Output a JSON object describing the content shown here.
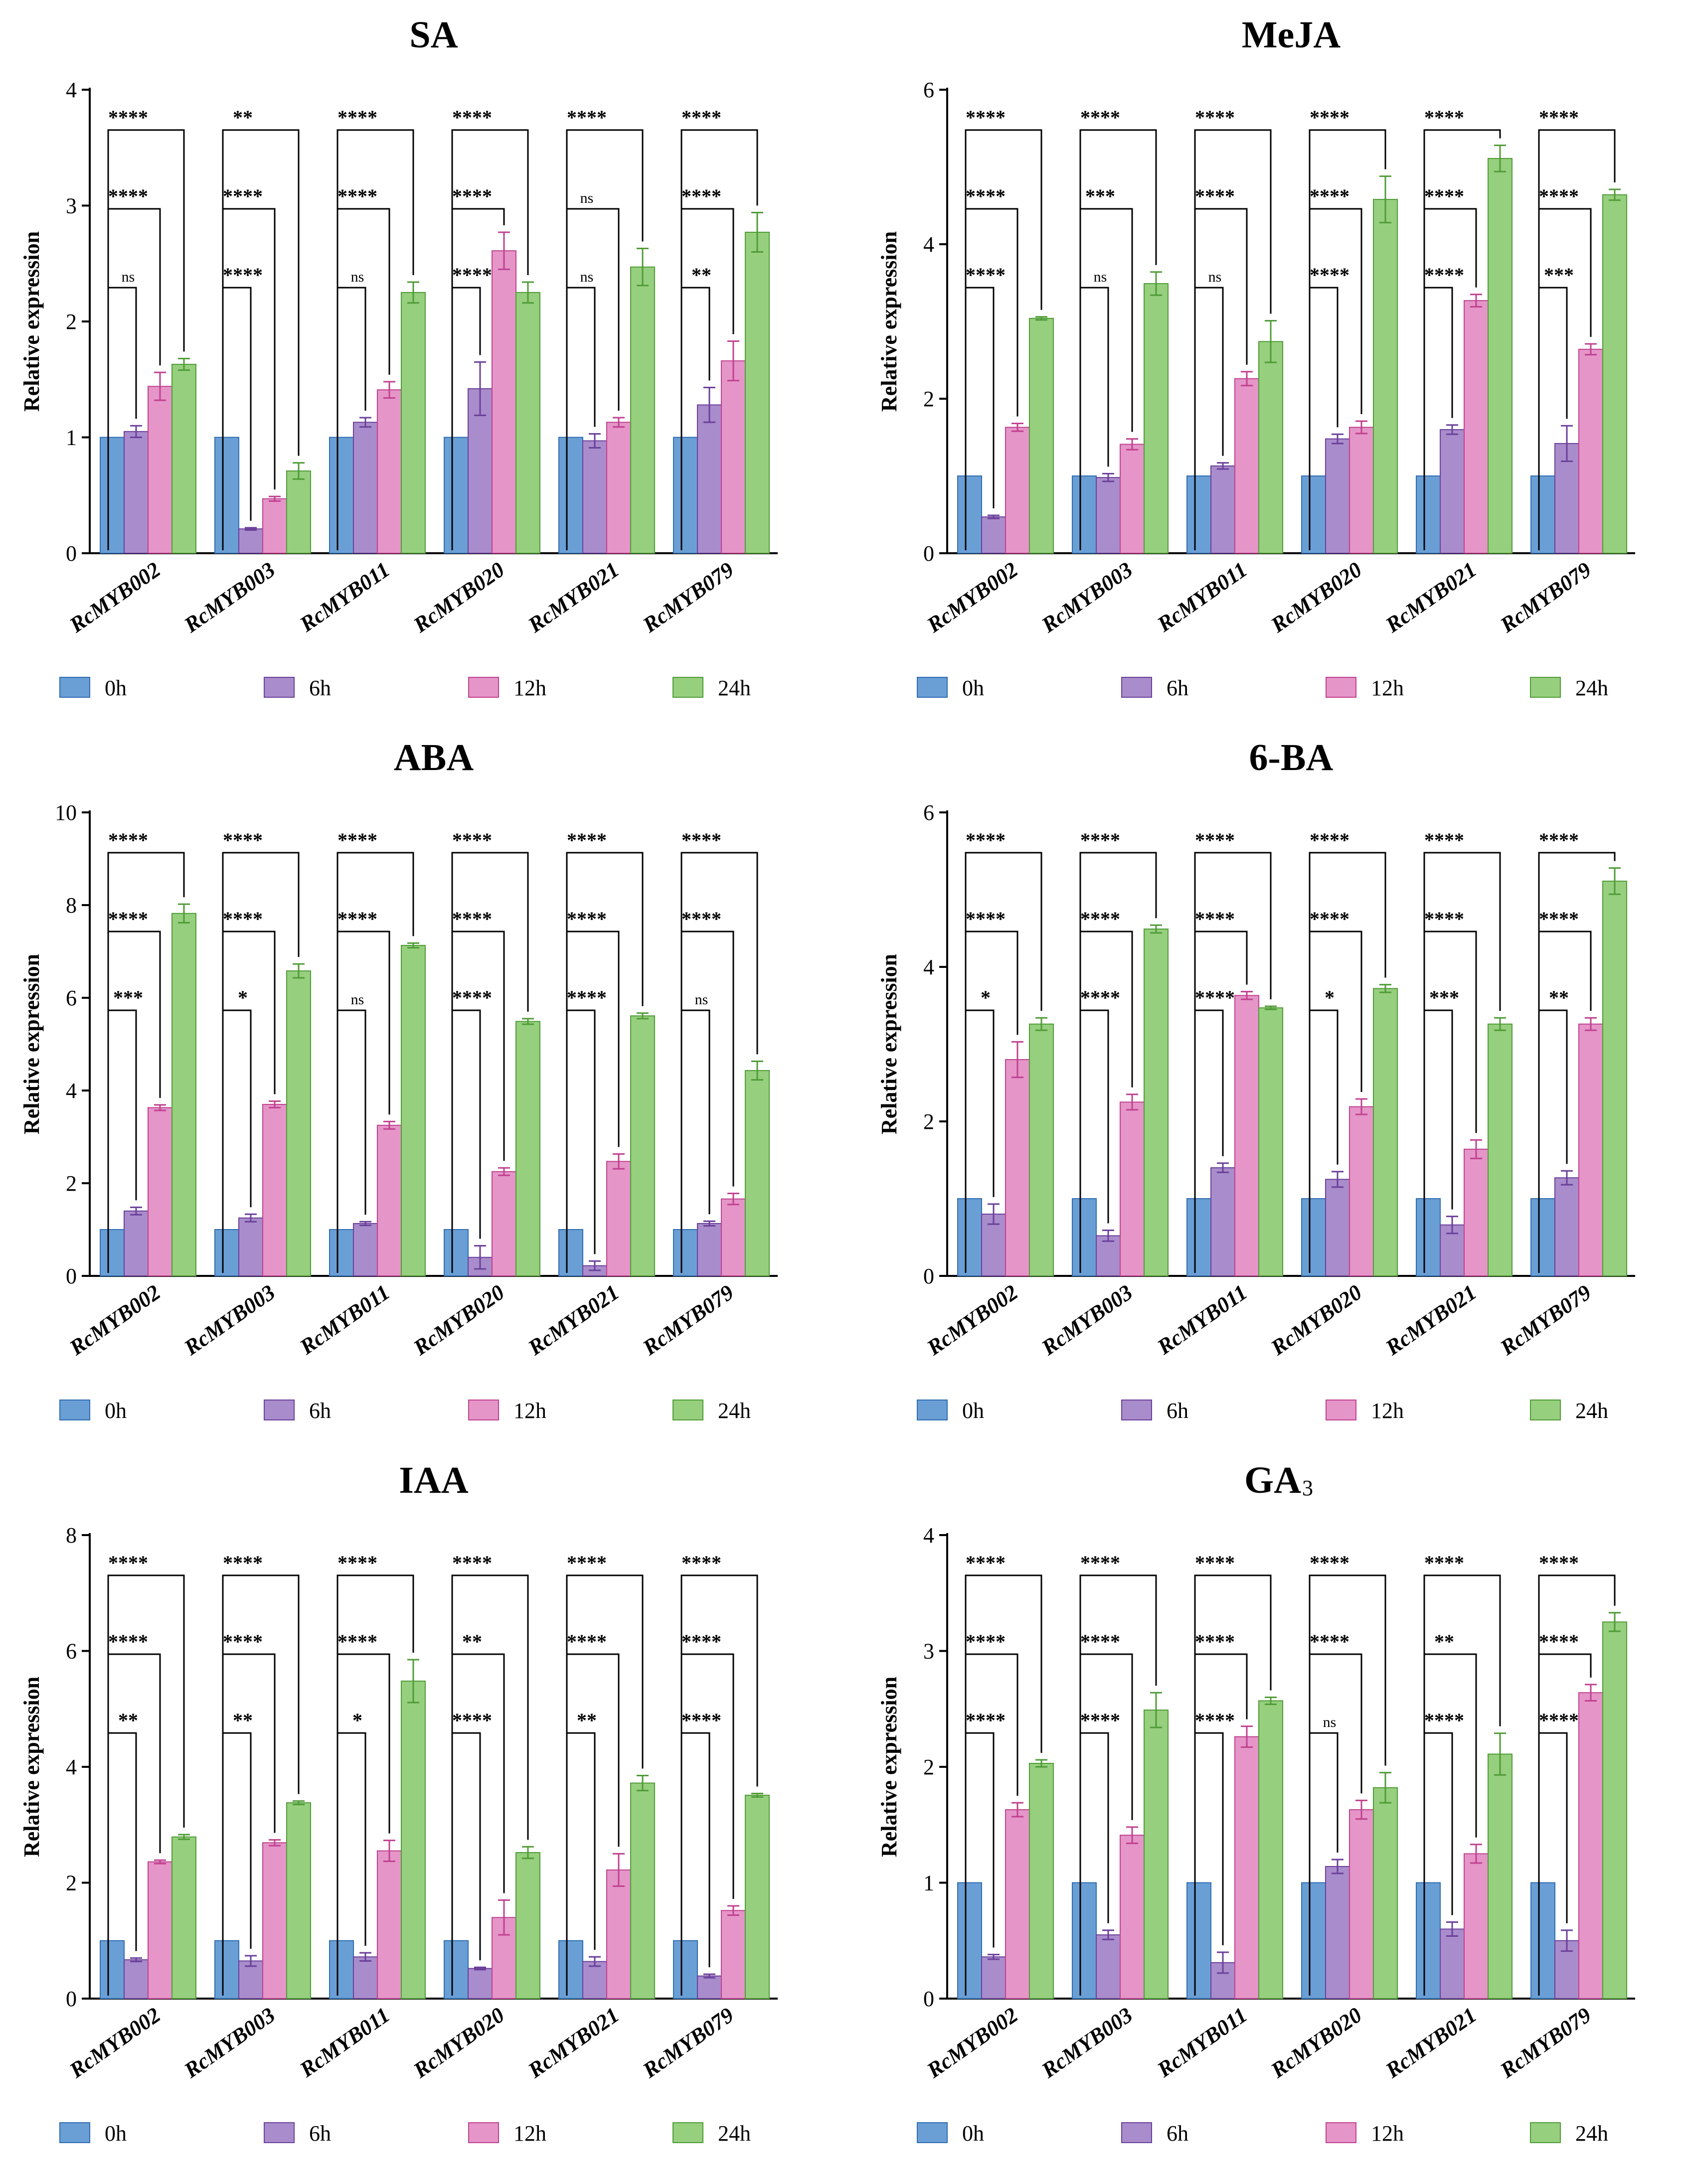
{
  "figure": {
    "legend": [
      {
        "label": "0h",
        "fill": "#6A9FD6",
        "stroke": "#2F6DB0"
      },
      {
        "label": "6h",
        "fill": "#A98CCB",
        "stroke": "#6A3F9A"
      },
      {
        "label": "12h",
        "fill": "#E595C8",
        "stroke": "#C0408F"
      },
      {
        "label": "24h",
        "fill": "#96CF7E",
        "stroke": "#4F9B36"
      }
    ]
  },
  "chart_data": [
    {
      "type": "bar",
      "title": "SA",
      "title_sub": "",
      "ylabel": "Relative expression",
      "ylim": [
        0,
        4
      ],
      "yticks": [
        0,
        1,
        2,
        3,
        4
      ],
      "categories": [
        "RcMYB002",
        "RcMYB003",
        "RcMYB011",
        "RcMYB020",
        "RcMYB021",
        "RcMYB079"
      ],
      "series": [
        {
          "name": "0h",
          "values": [
            1,
            1,
            1,
            1,
            1,
            1
          ],
          "errors": [
            0,
            0,
            0,
            0,
            0,
            0
          ]
        },
        {
          "name": "6h",
          "values": [
            1.05,
            0.21,
            1.13,
            1.42,
            0.97,
            1.28
          ],
          "errors": [
            0.05,
            0.01,
            0.04,
            0.23,
            0.06,
            0.15
          ]
        },
        {
          "name": "12h",
          "values": [
            1.44,
            0.47,
            1.41,
            2.61,
            1.13,
            1.66
          ],
          "errors": [
            0.12,
            0.02,
            0.07,
            0.16,
            0.04,
            0.17
          ]
        },
        {
          "name": "24h",
          "values": [
            1.63,
            0.71,
            2.25,
            2.25,
            2.47,
            2.77
          ],
          "errors": [
            0.05,
            0.07,
            0.09,
            0.09,
            0.16,
            0.17
          ]
        }
      ],
      "significance": [
        [
          "ns",
          "****",
          "****"
        ],
        [
          "****",
          "****",
          "**"
        ],
        [
          "ns",
          "****",
          "****"
        ],
        [
          "****",
          "****",
          "****"
        ],
        [
          "ns",
          "ns",
          "****"
        ],
        [
          "**",
          "****",
          "****"
        ]
      ]
    },
    {
      "type": "bar",
      "title": "MeJA",
      "title_sub": "",
      "ylabel": "Relative expression",
      "ylim": [
        0,
        6
      ],
      "yticks": [
        0,
        2,
        4,
        6
      ],
      "categories": [
        "RcMYB002",
        "RcMYB003",
        "RcMYB011",
        "RcMYB020",
        "RcMYB021",
        "RcMYB079"
      ],
      "series": [
        {
          "name": "0h",
          "values": [
            1,
            1,
            1,
            1,
            1,
            1
          ],
          "errors": [
            0,
            0,
            0,
            0,
            0,
            0
          ]
        },
        {
          "name": "6h",
          "values": [
            0.47,
            0.98,
            1.13,
            1.48,
            1.6,
            1.42
          ],
          "errors": [
            0.02,
            0.05,
            0.04,
            0.06,
            0.06,
            0.23
          ]
        },
        {
          "name": "12h",
          "values": [
            1.63,
            1.41,
            2.26,
            1.63,
            3.27,
            2.64
          ],
          "errors": [
            0.05,
            0.07,
            0.09,
            0.08,
            0.08,
            0.07
          ]
        },
        {
          "name": "24h",
          "values": [
            3.04,
            3.49,
            2.74,
            4.58,
            5.11,
            4.64
          ],
          "errors": [
            0.02,
            0.15,
            0.27,
            0.3,
            0.17,
            0.07
          ]
        }
      ],
      "significance": [
        [
          "****",
          "****",
          "****"
        ],
        [
          "ns",
          "***",
          "****"
        ],
        [
          "ns",
          "****",
          "****"
        ],
        [
          "****",
          "****",
          "****"
        ],
        [
          "****",
          "****",
          "****"
        ],
        [
          "***",
          "****",
          "****"
        ]
      ]
    },
    {
      "type": "bar",
      "title": "ABA",
      "title_sub": "",
      "ylabel": "Relative expression",
      "ylim": [
        0,
        10
      ],
      "yticks": [
        0,
        2,
        4,
        6,
        8,
        10
      ],
      "categories": [
        "RcMYB002",
        "RcMYB003",
        "RcMYB011",
        "RcMYB020",
        "RcMYB021",
        "RcMYB079"
      ],
      "series": [
        {
          "name": "0h",
          "values": [
            1,
            1,
            1,
            1,
            1,
            1
          ],
          "errors": [
            0,
            0,
            0,
            0,
            0,
            0
          ]
        },
        {
          "name": "6h",
          "values": [
            1.4,
            1.25,
            1.13,
            0.4,
            0.22,
            1.13
          ],
          "errors": [
            0.08,
            0.08,
            0.04,
            0.25,
            0.1,
            0.05
          ]
        },
        {
          "name": "12h",
          "values": [
            3.63,
            3.7,
            3.25,
            2.25,
            2.47,
            1.66
          ],
          "errors": [
            0.06,
            0.07,
            0.08,
            0.08,
            0.16,
            0.12
          ]
        },
        {
          "name": "24h",
          "values": [
            7.82,
            6.58,
            7.13,
            5.49,
            5.61,
            4.43
          ],
          "errors": [
            0.2,
            0.15,
            0.05,
            0.06,
            0.06,
            0.2
          ]
        }
      ],
      "significance": [
        [
          "***",
          "****",
          "****"
        ],
        [
          "*",
          "****",
          "****"
        ],
        [
          "ns",
          "****",
          "****"
        ],
        [
          "****",
          "****",
          "****"
        ],
        [
          "****",
          "****",
          "****"
        ],
        [
          "ns",
          "****",
          "****"
        ]
      ]
    },
    {
      "type": "bar",
      "title": "6-BA",
      "title_sub": "",
      "ylabel": "Relative expression",
      "ylim": [
        0,
        6
      ],
      "yticks": [
        0,
        2,
        4,
        6
      ],
      "categories": [
        "RcMYB002",
        "RcMYB003",
        "RcMYB011",
        "RcMYB020",
        "RcMYB021",
        "RcMYB079"
      ],
      "series": [
        {
          "name": "0h",
          "values": [
            1,
            1,
            1,
            1,
            1,
            1
          ],
          "errors": [
            0,
            0,
            0,
            0,
            0,
            0
          ]
        },
        {
          "name": "6h",
          "values": [
            0.8,
            0.52,
            1.4,
            1.25,
            0.66,
            1.27
          ],
          "errors": [
            0.13,
            0.07,
            0.06,
            0.1,
            0.11,
            0.09
          ]
        },
        {
          "name": "12h",
          "values": [
            2.8,
            2.25,
            3.63,
            2.19,
            1.64,
            3.26
          ],
          "errors": [
            0.23,
            0.1,
            0.05,
            0.1,
            0.12,
            0.08
          ]
        },
        {
          "name": "24h",
          "values": [
            3.26,
            4.49,
            3.47,
            3.72,
            3.26,
            5.11
          ],
          "errors": [
            0.08,
            0.05,
            0.02,
            0.05,
            0.08,
            0.17
          ]
        }
      ],
      "significance": [
        [
          "*",
          "****",
          "****"
        ],
        [
          "****",
          "****",
          "****"
        ],
        [
          "****",
          "****",
          "****"
        ],
        [
          "*",
          "****",
          "****"
        ],
        [
          "***",
          "****",
          "****"
        ],
        [
          "**",
          "****",
          "****"
        ]
      ]
    },
    {
      "type": "bar",
      "title": "IAA",
      "title_sub": "",
      "ylabel": "Relative expression",
      "ylim": [
        0,
        8
      ],
      "yticks": [
        0,
        2,
        4,
        6,
        8
      ],
      "categories": [
        "RcMYB002",
        "RcMYB003",
        "RcMYB011",
        "RcMYB020",
        "RcMYB021",
        "RcMYB079"
      ],
      "series": [
        {
          "name": "0h",
          "values": [
            1,
            1,
            1,
            1,
            1,
            1
          ],
          "errors": [
            0,
            0,
            0,
            0,
            0,
            0
          ]
        },
        {
          "name": "6h",
          "values": [
            0.67,
            0.65,
            0.72,
            0.52,
            0.64,
            0.39
          ],
          "errors": [
            0.03,
            0.09,
            0.07,
            0.02,
            0.08,
            0.03
          ]
        },
        {
          "name": "12h",
          "values": [
            2.36,
            2.69,
            2.55,
            1.4,
            2.22,
            1.52
          ],
          "errors": [
            0.03,
            0.05,
            0.18,
            0.3,
            0.28,
            0.08
          ]
        },
        {
          "name": "24h",
          "values": [
            2.79,
            3.38,
            5.48,
            2.52,
            3.72,
            3.51
          ],
          "errors": [
            0.04,
            0.03,
            0.37,
            0.1,
            0.13,
            0.03
          ]
        }
      ],
      "significance": [
        [
          "**",
          "****",
          "****"
        ],
        [
          "**",
          "****",
          "****"
        ],
        [
          "*",
          "****",
          "****"
        ],
        [
          "****",
          "**",
          "****"
        ],
        [
          "**",
          "****",
          "****"
        ],
        [
          "****",
          "****",
          "****"
        ]
      ]
    },
    {
      "type": "bar",
      "title": "GA",
      "title_sub": "3",
      "ylabel": "Relative expression",
      "ylim": [
        0,
        4
      ],
      "yticks": [
        0,
        1,
        2,
        3,
        4
      ],
      "categories": [
        "RcMYB002",
        "RcMYB003",
        "RcMYB011",
        "RcMYB020",
        "RcMYB021",
        "RcMYB079"
      ],
      "series": [
        {
          "name": "0h",
          "values": [
            1,
            1,
            1,
            1,
            1,
            1
          ],
          "errors": [
            0,
            0,
            0,
            0,
            0,
            0
          ]
        },
        {
          "name": "6h",
          "values": [
            0.36,
            0.55,
            0.31,
            1.14,
            0.6,
            0.5
          ],
          "errors": [
            0.02,
            0.04,
            0.09,
            0.06,
            0.06,
            0.09
          ]
        },
        {
          "name": "12h",
          "values": [
            1.63,
            1.41,
            2.26,
            1.63,
            1.25,
            2.64
          ],
          "errors": [
            0.06,
            0.07,
            0.09,
            0.08,
            0.08,
            0.07
          ]
        },
        {
          "name": "24h",
          "values": [
            2.03,
            2.49,
            2.57,
            1.82,
            2.11,
            3.25
          ],
          "errors": [
            0.03,
            0.15,
            0.03,
            0.13,
            0.18,
            0.08
          ]
        }
      ],
      "significance": [
        [
          "****",
          "****",
          "****"
        ],
        [
          "****",
          "****",
          "****"
        ],
        [
          "****",
          "****",
          "****"
        ],
        [
          "ns",
          "****",
          "****"
        ],
        [
          "****",
          "**",
          "****"
        ],
        [
          "****",
          "****",
          "****"
        ]
      ]
    }
  ]
}
